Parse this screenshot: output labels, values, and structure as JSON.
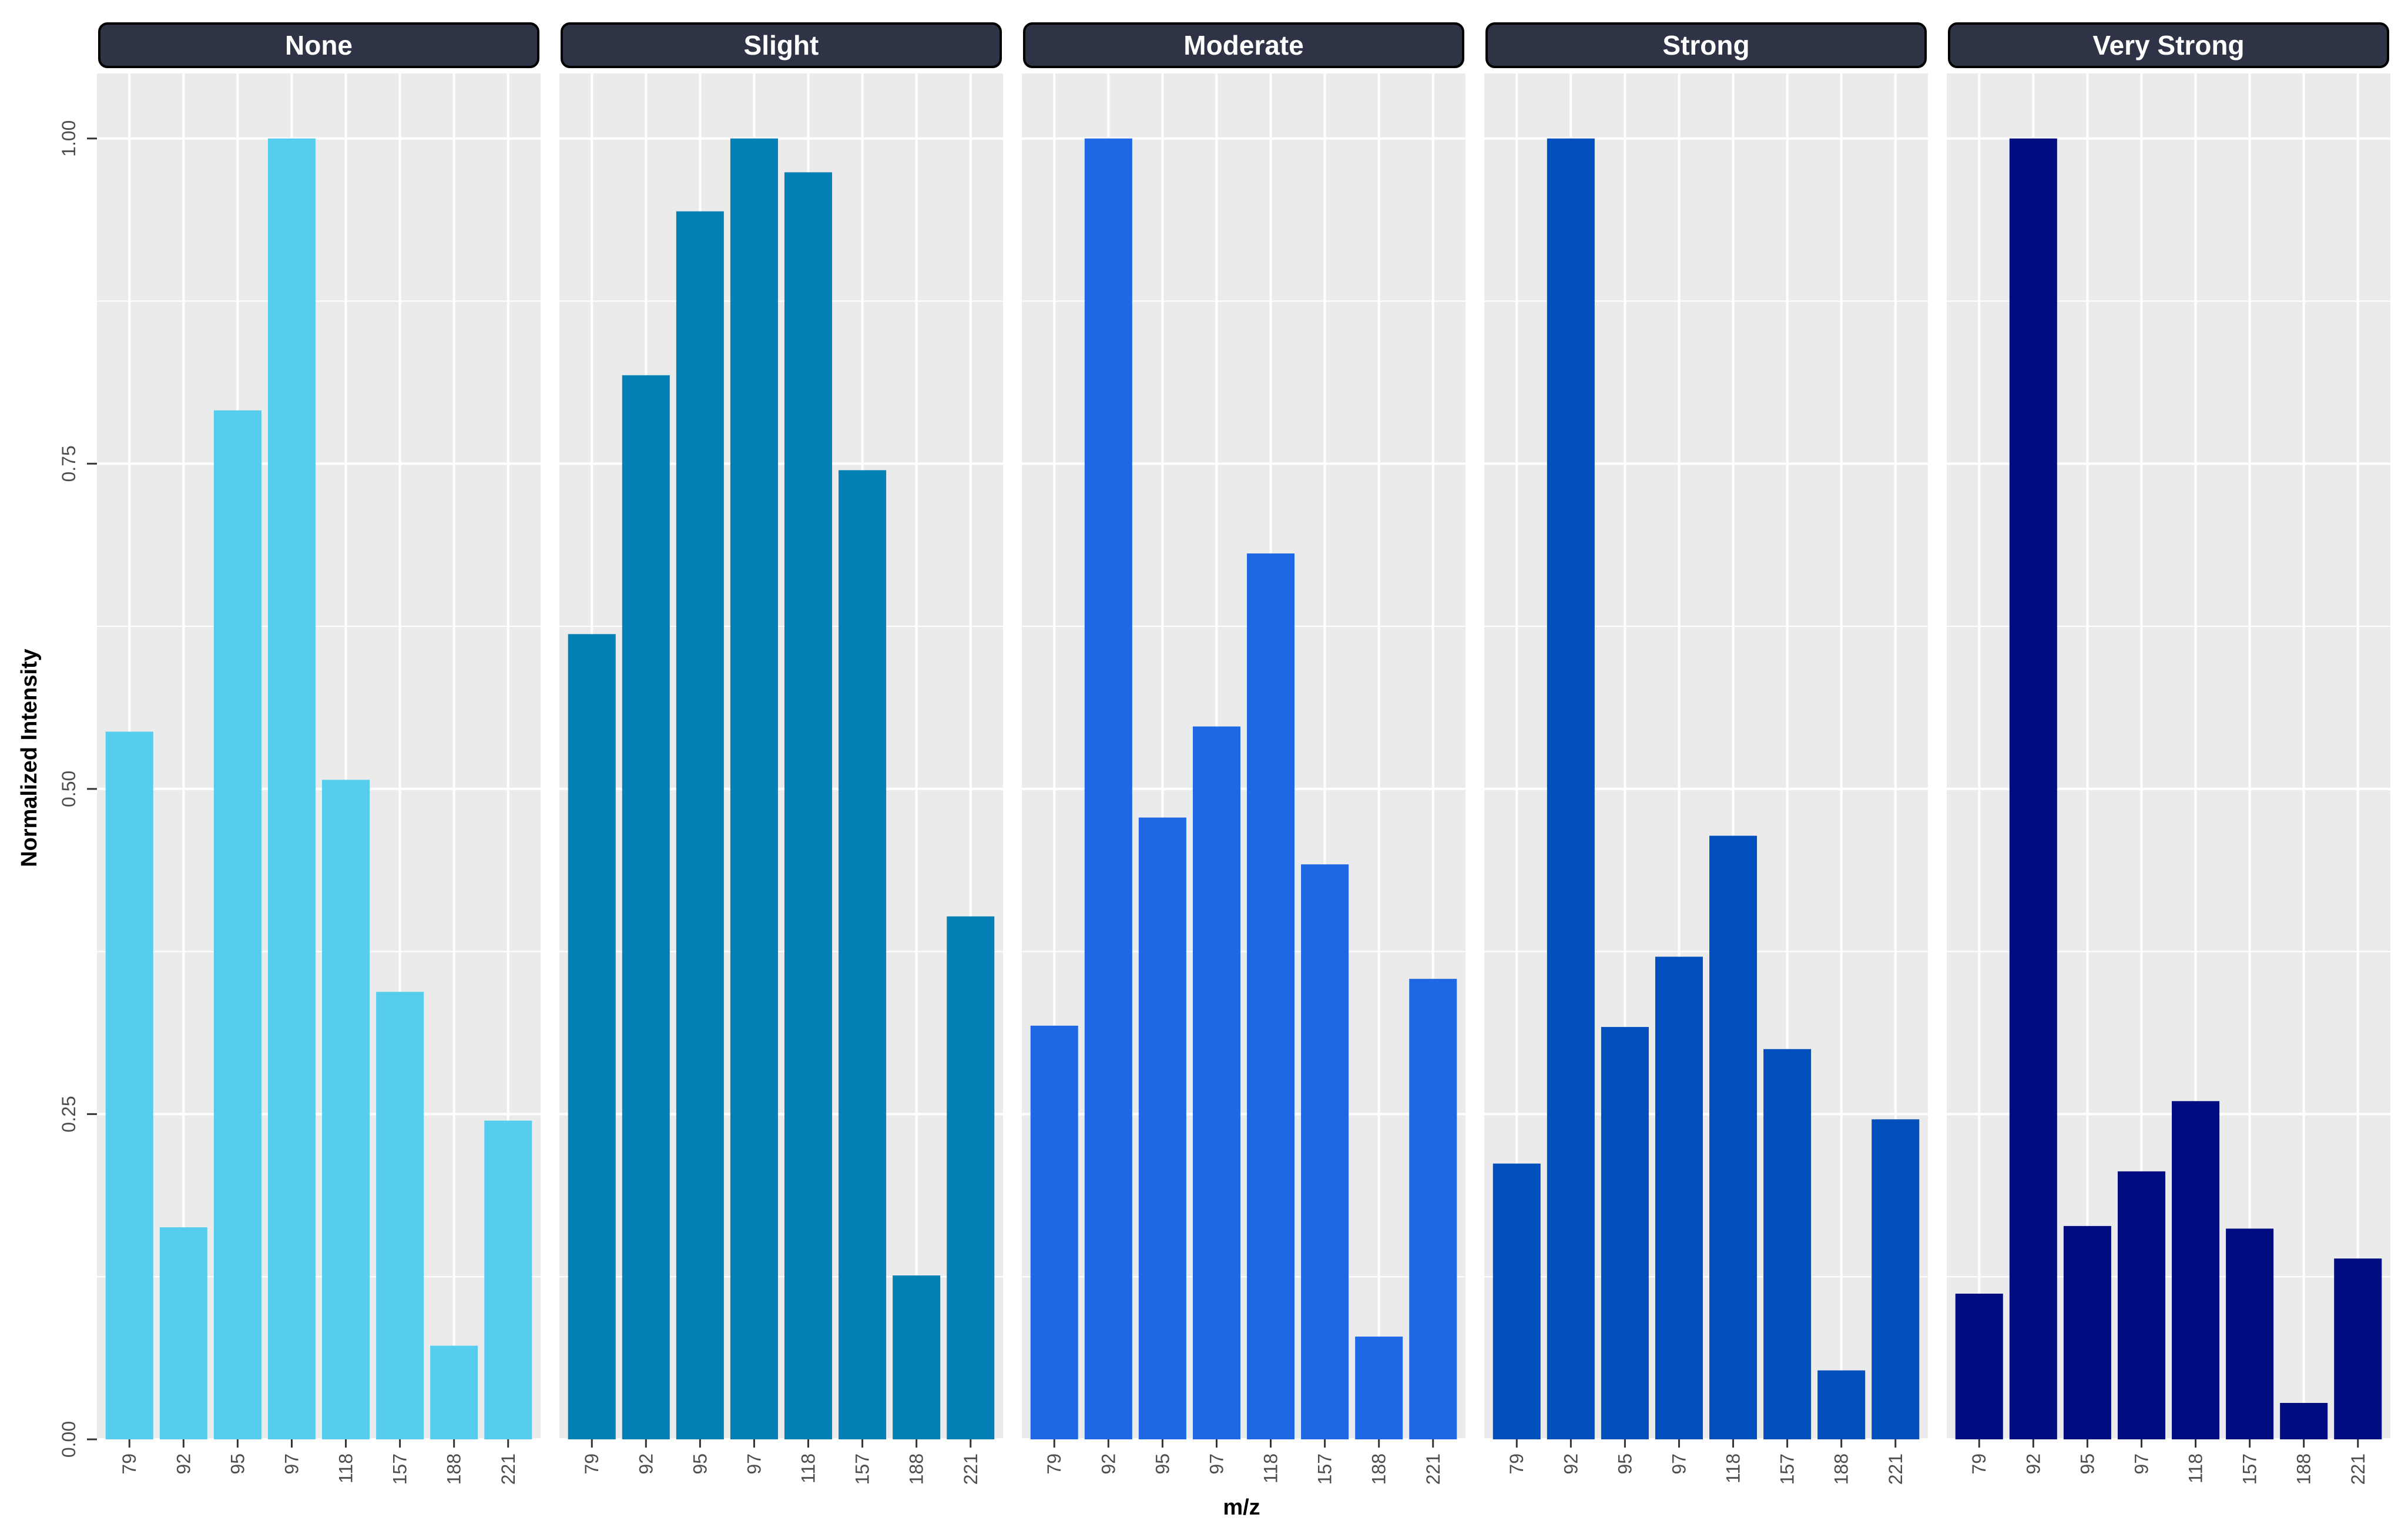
{
  "chart_data": {
    "type": "bar",
    "layout": "faceted",
    "xlabel": "m/z",
    "ylabel": "Normalized Intensity",
    "ylim": [
      0,
      1.05
    ],
    "y_ticks": [
      0,
      0.25,
      0.5,
      0.75,
      1.0
    ],
    "y_tick_labels": [
      "0.00",
      "0.25",
      "0.50",
      "0.75",
      "1.00"
    ],
    "categories": [
      "79",
      "92",
      "95",
      "97",
      "118",
      "157",
      "188",
      "221"
    ],
    "panels": [
      {
        "name": "None",
        "color": "#56cded",
        "values": [
          0.544,
          0.163,
          0.791,
          1.0,
          0.507,
          0.344,
          0.072,
          0.245
        ]
      },
      {
        "name": "Slight",
        "color": "#0381b6",
        "values": [
          0.619,
          0.818,
          0.944,
          1.0,
          0.974,
          0.745,
          0.126,
          0.402
        ]
      },
      {
        "name": "Moderate",
        "color": "#1e68e6",
        "values": [
          0.318,
          1.0,
          0.478,
          0.548,
          0.681,
          0.442,
          0.079,
          0.354
        ]
      },
      {
        "name": "Strong",
        "color": "#014fbd",
        "values": [
          0.212,
          1.0,
          0.317,
          0.371,
          0.464,
          0.3,
          0.053,
          0.246
        ]
      },
      {
        "name": "Very Strong",
        "color": "#010c80",
        "values": [
          0.112,
          1.0,
          0.164,
          0.206,
          0.26,
          0.162,
          0.028,
          0.139
        ]
      }
    ]
  }
}
